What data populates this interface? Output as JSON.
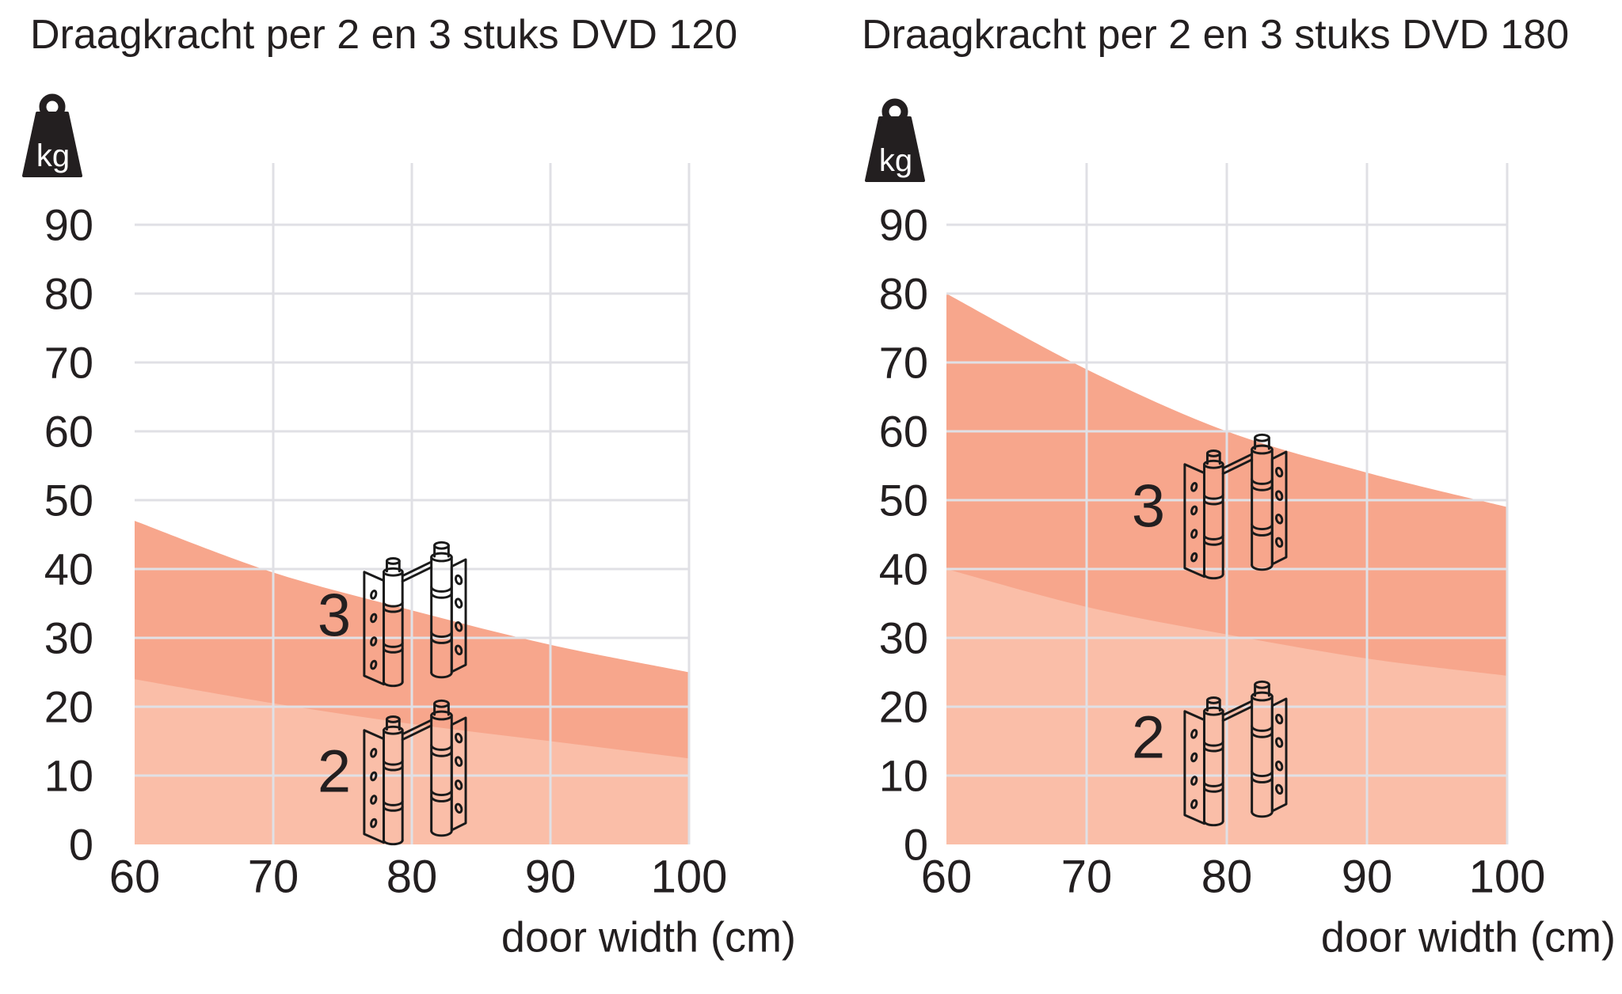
{
  "page": {
    "background": "#ffffff"
  },
  "colors": {
    "series3_fill": "#f7a68c",
    "series2_fill": "#fabea8",
    "gridline": "#e0e0e5",
    "text": "#231f20",
    "icon_black": "#231f20"
  },
  "icons": {
    "kg_label": "kg",
    "weight_icon_name": "kg-weight-icon",
    "hinge_icon_name": "door-hinge-pair-icon"
  },
  "chart_data": [
    {
      "type": "area",
      "title": "Draagkracht per 2 en 3 stuks DVD 120",
      "xlabel": "door width (cm)",
      "ylabel": "kg",
      "x": [
        60,
        70,
        80,
        90,
        100
      ],
      "xticks": [
        60,
        70,
        80,
        90,
        100
      ],
      "yticks": [
        0,
        10,
        20,
        30,
        40,
        50,
        60,
        70,
        80,
        90
      ],
      "xlim": [
        60,
        100
      ],
      "ylim": [
        0,
        99
      ],
      "grid": true,
      "series": [
        {
          "name": "3 hinges",
          "hinge_count_label": "3",
          "values": [
            47,
            39.5,
            34,
            29,
            25
          ],
          "color_key": "series3_fill"
        },
        {
          "name": "2 hinges",
          "hinge_count_label": "2",
          "values": [
            24,
            20.5,
            17.5,
            15,
            12.5
          ],
          "color_key": "series2_fill"
        }
      ]
    },
    {
      "type": "area",
      "title": "Draagkracht per 2 en 3 stuks DVD 180",
      "xlabel": "door width (cm)",
      "ylabel": "kg",
      "x": [
        60,
        70,
        80,
        90,
        100
      ],
      "xticks": [
        60,
        70,
        80,
        90,
        100
      ],
      "yticks": [
        0,
        10,
        20,
        30,
        40,
        50,
        60,
        70,
        80,
        90
      ],
      "xlim": [
        60,
        100
      ],
      "ylim": [
        0,
        99
      ],
      "grid": true,
      "series": [
        {
          "name": "3 hinges",
          "hinge_count_label": "3",
          "values": [
            80,
            69,
            60,
            54,
            49
          ],
          "color_key": "series3_fill"
        },
        {
          "name": "2 hinges",
          "hinge_count_label": "2",
          "values": [
            40,
            34.5,
            30.5,
            27,
            24.5
          ],
          "color_key": "series2_fill"
        }
      ]
    }
  ]
}
